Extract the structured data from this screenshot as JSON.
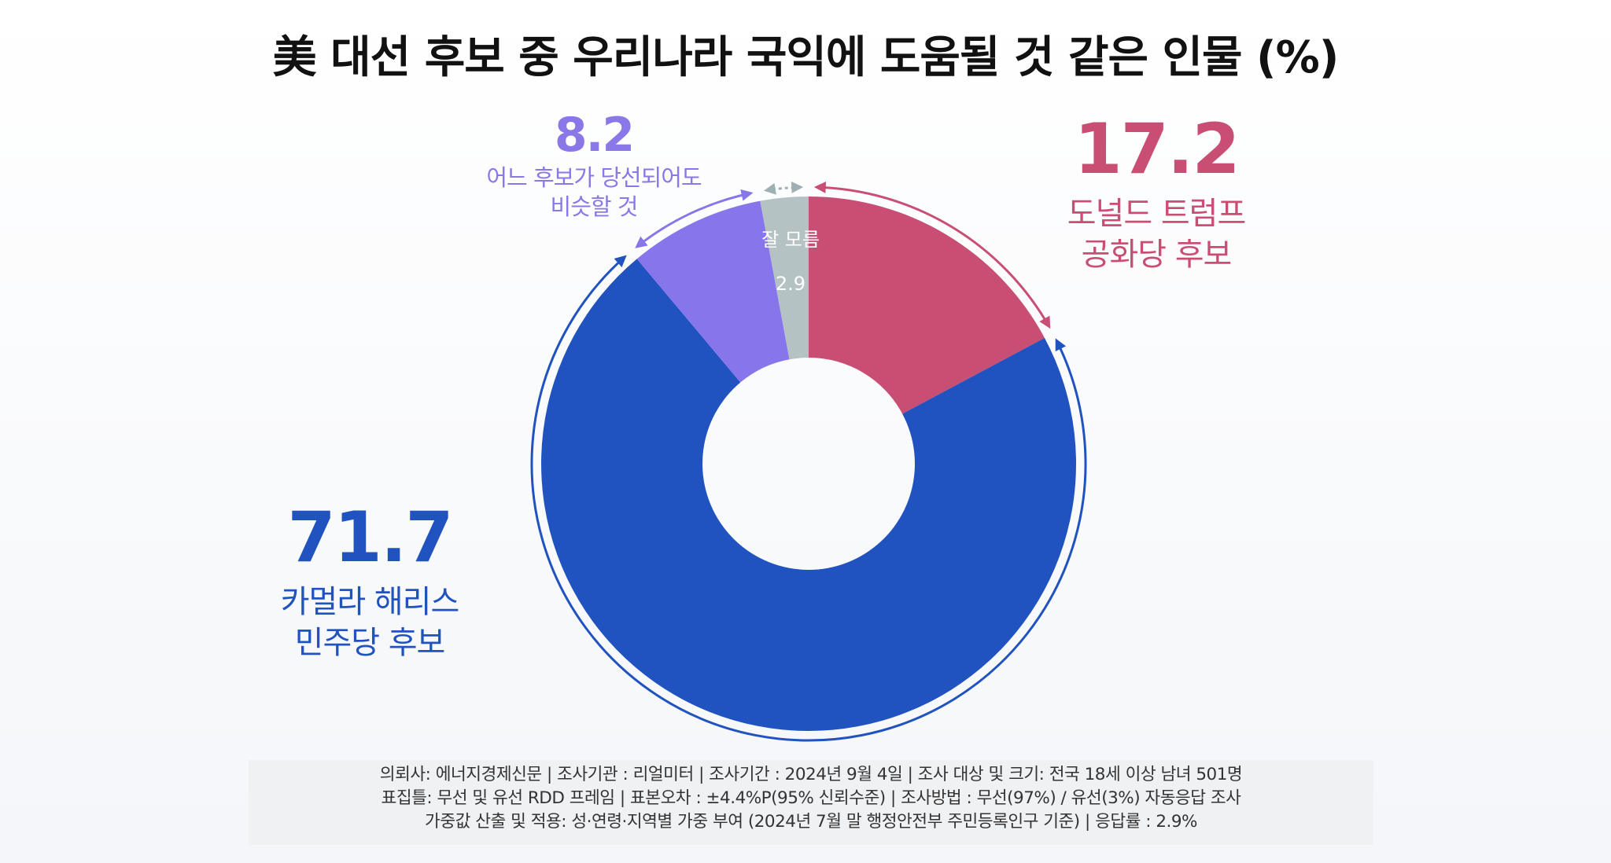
{
  "title": "美 대선 후보 중 우리나라 국익에 도움될 것 같은 인물 (%)",
  "colors": {
    "harris": "#2053bf",
    "trump": "#c94e74",
    "similar": "#8775ec",
    "unknown": "#b5c2c3",
    "similar_text": "#8a78e9"
  },
  "chart_data": {
    "type": "pie",
    "title": "美 대선 후보 중 우리나라 국익에 도움될 것 같은 인물 (%)",
    "unit": "%",
    "slices": [
      {
        "key": "trump",
        "value": 17.2,
        "label_lines": [
          "도널드 트럼프",
          "공화당 후보"
        ],
        "color": "#c94e74"
      },
      {
        "key": "harris",
        "value": 71.7,
        "label_lines": [
          "카멀라 해리스",
          "민주당 후보"
        ],
        "color": "#2053bf"
      },
      {
        "key": "similar",
        "value": 8.2,
        "label_lines": [
          "어느 후보가 당선되어도",
          "비슷할 것"
        ],
        "color": "#8775ec"
      },
      {
        "key": "unknown",
        "value": 2.9,
        "label_lines": [
          "잘 모름"
        ],
        "color": "#b5c2c3"
      }
    ]
  },
  "labels": {
    "trump": {
      "value": "17.2",
      "line1": "도널드 트럼프",
      "line2": "공화당 후보"
    },
    "harris": {
      "value": "71.7",
      "line1": "카멀라 해리스",
      "line2": "민주당 후보"
    },
    "similar": {
      "value": "8.2",
      "line1": "어느 후보가 당선되어도",
      "line2": "비슷할 것"
    },
    "unknown": {
      "value": "2.9",
      "line1": "잘 모름"
    }
  },
  "footer": {
    "line1": "의뢰사: 에너지경제신문 | 조사기관 : 리얼미터  |  조사기간 : 2024년 9월 4일 | 조사 대상 및 크기: 전국 18세 이상 남녀 501명",
    "line2": "표집틀: 무선 및 유선 RDD 프레임 | 표본오차 : ±4.4%P(95% 신뢰수준) | 조사방법 : 무선(97%) / 유선(3%) 자동응답 조사",
    "line3": "가중값 산출 및 적용: 성·연령·지역별 가중 부여 (2024년 7월 말 행정안전부 주민등록인구 기준) | 응답률 : 2.9%"
  }
}
